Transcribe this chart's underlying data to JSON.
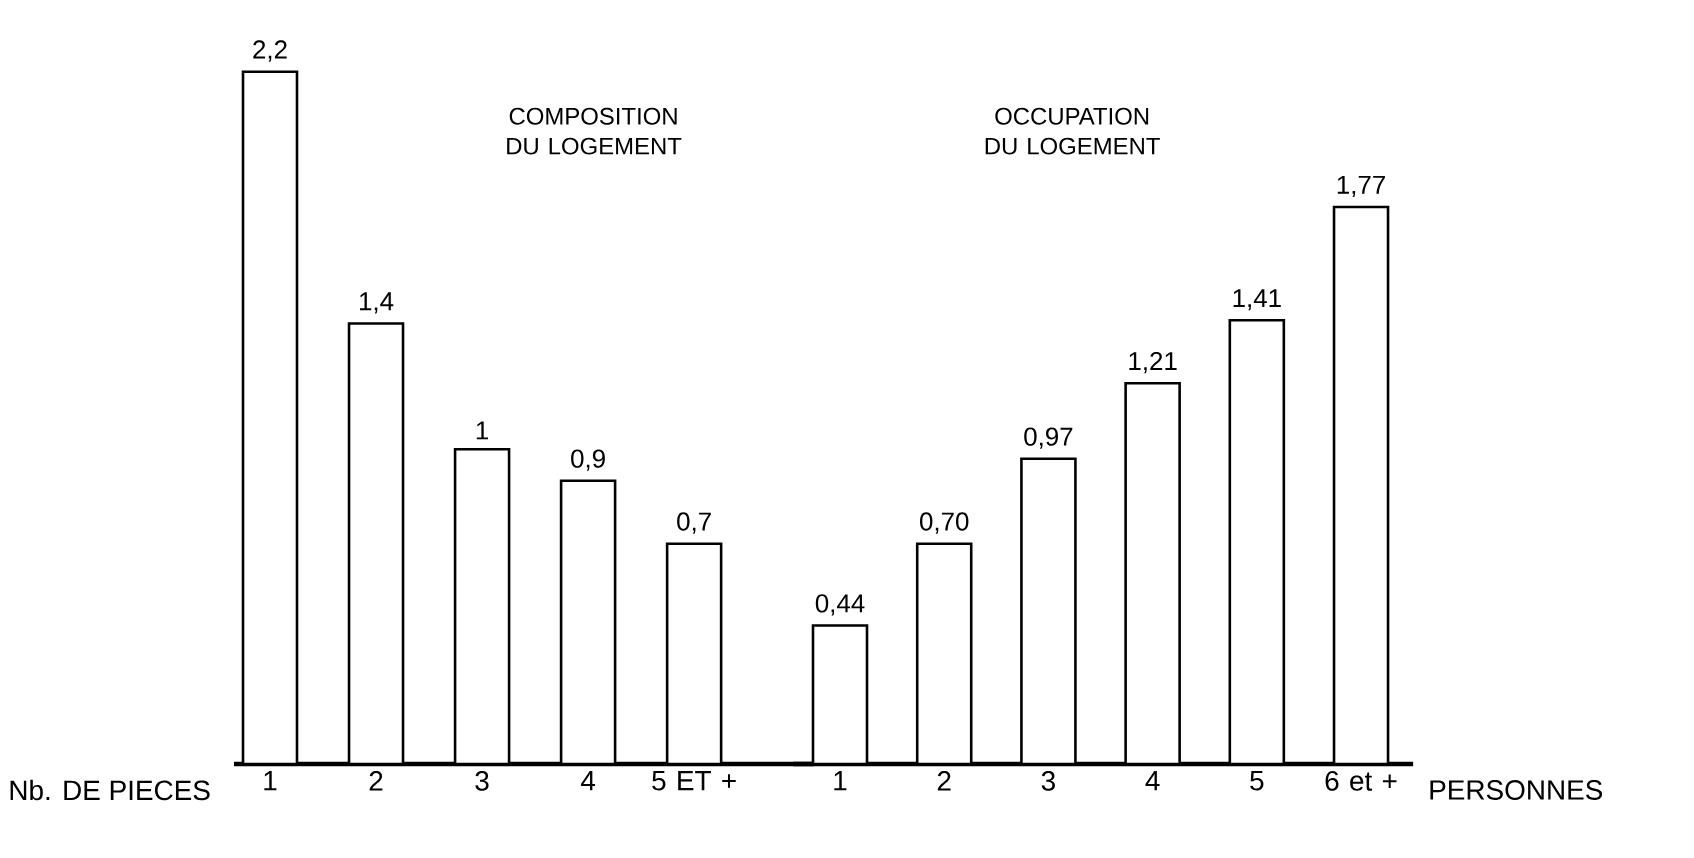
{
  "chart_data": [
    {
      "type": "bar",
      "title": "COMPOSITION DU LOGEMENT",
      "xlabel": "Nb. DE PIECES",
      "categories": [
        "1",
        "2",
        "3",
        "4",
        "5 ET +"
      ],
      "values": [
        2.2,
        1.4,
        1,
        0.9,
        0.7
      ],
      "value_labels": [
        "2,2",
        "1,4",
        "1",
        "0,9",
        "0,7"
      ],
      "color": "#ffffff"
    },
    {
      "type": "bar",
      "title": "OCCUPATION DU LOGEMENT",
      "xlabel": "PERSONNES",
      "categories": [
        "1",
        "2",
        "3",
        "4",
        "5",
        "6 et +"
      ],
      "values": [
        0.44,
        0.7,
        0.97,
        1.21,
        1.41,
        1.77
      ],
      "value_labels": [
        "0,44",
        "0,70",
        "0,97",
        "1,21",
        "1,41",
        "1,77"
      ],
      "color": "#ffffff"
    }
  ]
}
